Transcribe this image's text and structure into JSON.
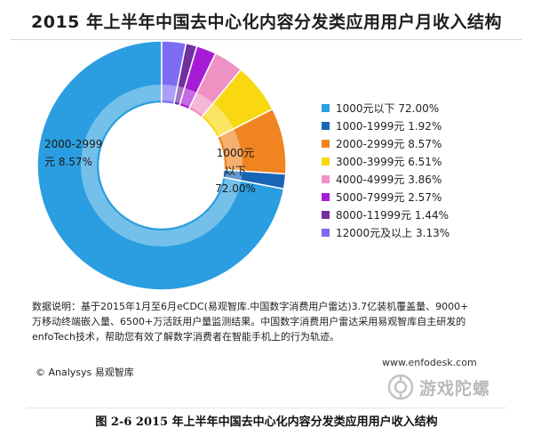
{
  "chart_data": {
    "type": "pie",
    "title": "2015 年上半年中国去中心化内容分发类应用用户月收入结构",
    "categories": [
      "1000元以下",
      "1000-1999元",
      "2000-2999元",
      "3000-3999元",
      "4000-4999元",
      "5000-7999元",
      "8000-11999元",
      "12000元及以上"
    ],
    "values": [
      72.0,
      1.92,
      8.57,
      6.51,
      3.86,
      2.57,
      1.44,
      3.13
    ],
    "legend": [
      "1000元以下 72.00%",
      "1000-1999元 1.92%",
      "2000-2999元 8.57%",
      "3000-3999元 6.51%",
      "4000-4999元 3.86%",
      "5000-7999元 2.57%",
      "8000-11999元 1.44%",
      "12000元及以上 3.13%"
    ],
    "colors": [
      "#2a9ee0",
      "#1865b6",
      "#f08421",
      "#f9d812",
      "#ef91c3",
      "#a61cd6",
      "#7030a0",
      "#7b6cf2"
    ],
    "labels": {
      "slice_main": [
        "1000元",
        "以下",
        "72.00%"
      ],
      "slice_2000": [
        "2000-2999",
        "元 8.57%"
      ]
    },
    "legend_position": "right"
  },
  "note": {
    "line1": "数据说明：基于2015年1月至6月eCDC(易观智库.中国数字消费用户雷达)3.7亿装机覆盖量、9000+",
    "line2": "万移动终端嵌入量、6500+万活跃用户量监测结果。中国数字消费用户雷达采用易观智库自主研发的",
    "line3": "enfoTech技术，帮助您有效了解数字消费者在智能手机上的行为轨迹。"
  },
  "copyright": "© Analysys 易观智库",
  "website": "www.enfodesk.com",
  "watermark": "游戏陀螺",
  "caption": "图 2-6  2015 年上半年中国去中心化内容分发类应用用户收入结构"
}
